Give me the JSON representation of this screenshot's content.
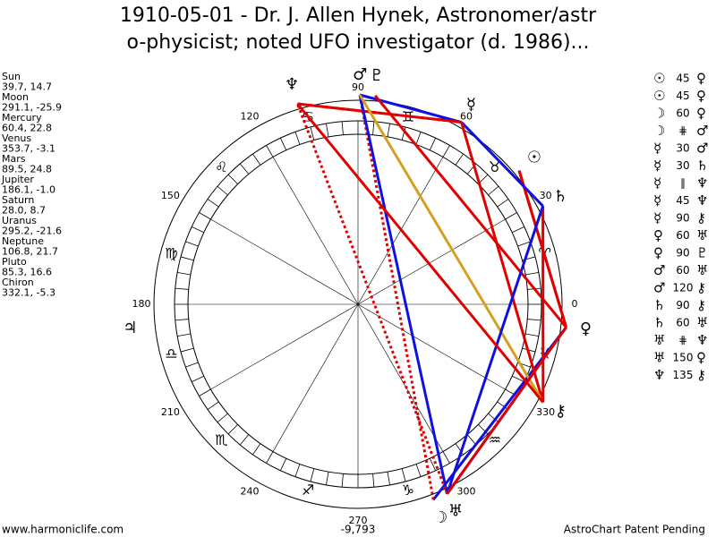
{
  "title": [
    "1910-05-01 - Dr. J. Allen Hynek, Astronomer/astr",
    "o-physicist; noted UFO investigator (d. 1986)..."
  ],
  "positions": [
    {
      "name": "Sun",
      "coords": "39.7, 14.7",
      "glyph": "☉"
    },
    {
      "name": "Moon",
      "coords": "291.1, -25.9",
      "glyph": "☽"
    },
    {
      "name": "Mercury",
      "coords": "60.4, 22.8",
      "glyph": "☿"
    },
    {
      "name": "Venus",
      "coords": "353.7, -3.1",
      "glyph": "♀"
    },
    {
      "name": "Mars",
      "coords": "89.5, 24.8",
      "glyph": "♂"
    },
    {
      "name": "Jupiter",
      "coords": "186.1, -1.0",
      "glyph": "♃"
    },
    {
      "name": "Saturn",
      "coords": "28.0, 8.7",
      "glyph": "♄"
    },
    {
      "name": "Uranus",
      "coords": "295.2, -21.6",
      "glyph": "♅"
    },
    {
      "name": "Neptune",
      "coords": "106.8, 21.7",
      "glyph": "♆"
    },
    {
      "name": "Pluto",
      "coords": "85.3, 16.6",
      "glyph": "♇"
    },
    {
      "name": "Chiron",
      "coords": "332.1, -5.3",
      "glyph": "⚷"
    }
  ],
  "aspects": [
    {
      "a": "☉",
      "angle": "45",
      "b": "♀",
      "color": "#e00000"
    },
    {
      "a": "☉",
      "angle": "45",
      "b": "♀",
      "color": "#e00000"
    },
    {
      "a": "☽",
      "angle": "60",
      "b": "♀",
      "color": "#1010e0"
    },
    {
      "a": "☽",
      "angle": "⋕",
      "b": "♂",
      "color": "#e00000",
      "dashed": true
    },
    {
      "a": "☿",
      "angle": "30",
      "b": "♂",
      "color": "#1010e0"
    },
    {
      "a": "☿",
      "angle": "30",
      "b": "♄",
      "color": "#1010e0"
    },
    {
      "a": "☿",
      "angle": "∥",
      "b": "♆",
      "color": "#e00000",
      "dashed": true
    },
    {
      "a": "☿",
      "angle": "45",
      "b": "♆",
      "color": "#e00000"
    },
    {
      "a": "☿",
      "angle": "90",
      "b": "⚷",
      "color": "#e00000"
    },
    {
      "a": "♀",
      "angle": "60",
      "b": "♅",
      "color": "#1010e0"
    },
    {
      "a": "♀",
      "angle": "90",
      "b": "♇",
      "color": "#e00000"
    },
    {
      "a": "♂",
      "angle": "60",
      "b": "♅",
      "color": "#1010e0"
    },
    {
      "a": "♂",
      "angle": "120",
      "b": "⚷",
      "color": "#d4a020"
    },
    {
      "a": "♄",
      "angle": "90",
      "b": "⚷",
      "color": "#e00000"
    },
    {
      "a": "♄",
      "angle": "60",
      "b": "♅",
      "color": "#1010e0"
    },
    {
      "a": "♅",
      "angle": "⋕",
      "b": "♆",
      "color": "#e00000",
      "dashed": true
    },
    {
      "a": "♅",
      "angle": "150",
      "b": "♀",
      "color": "#e00000"
    },
    {
      "a": "♆",
      "angle": "135",
      "b": "⚷",
      "color": "#e00000"
    }
  ],
  "degree_labels": [
    "0",
    "30",
    "60",
    "90",
    "120",
    "150",
    "180",
    "210",
    "240",
    "270",
    "300",
    "330"
  ],
  "signs": [
    "♈",
    "♉",
    "♊",
    "♋",
    "♌",
    "♍",
    "♎",
    "♏",
    "♐",
    "♑",
    "♒",
    "♓"
  ],
  "footer": {
    "left": "www.harmoniclife.com",
    "center": "-9,793",
    "right": "AstroChart Patent Pending"
  }
}
